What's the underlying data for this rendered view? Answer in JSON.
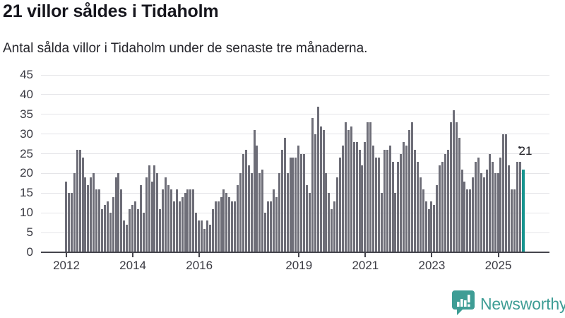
{
  "header": {
    "title": "21 villor såldes i Tidaholm",
    "subtitle": "Antal sålda villor i Tidaholm under de senaste tre månaderna."
  },
  "chart_data": {
    "type": "bar",
    "title": "21 villor såldes i Tidaholm",
    "subtitle": "Antal sålda villor i Tidaholm under de senaste tre månaderna.",
    "x_start": "2012-01",
    "x_interval": "monthly",
    "values": [
      18,
      15,
      15,
      20,
      26,
      26,
      24,
      19,
      17,
      19,
      20,
      16,
      16,
      11,
      12,
      13,
      10,
      14,
      19,
      20,
      16,
      8,
      7,
      11,
      12,
      13,
      11,
      17,
      10,
      19,
      22,
      18,
      22,
      20,
      11,
      16,
      19,
      17,
      16,
      13,
      16,
      13,
      14,
      15,
      16,
      16,
      16,
      10,
      8,
      8,
      6,
      8,
      7,
      11,
      13,
      13,
      14,
      16,
      15,
      14,
      13,
      13,
      17,
      20,
      25,
      26,
      22,
      20,
      31,
      27,
      20,
      21,
      10,
      13,
      13,
      16,
      14,
      20,
      26,
      29,
      20,
      24,
      24,
      24,
      27,
      25,
      25,
      17,
      15,
      34,
      30,
      37,
      32,
      31,
      20,
      15,
      11,
      13,
      19,
      24,
      27,
      33,
      31,
      32,
      28,
      28,
      26,
      22,
      28,
      33,
      33,
      27,
      24,
      24,
      15,
      26,
      26,
      27,
      23,
      15,
      23,
      25,
      28,
      27,
      31,
      33,
      26,
      23,
      19,
      16,
      13,
      11,
      13,
      12,
      17,
      22,
      23,
      25,
      26,
      33,
      36,
      33,
      29,
      21,
      18,
      16,
      16,
      19,
      23,
      24,
      20,
      19,
      21,
      25,
      23,
      20,
      20,
      24,
      30,
      30,
      22,
      16,
      16,
      23,
      23,
      21
    ],
    "highlight_last": true,
    "highlight_value": 21,
    "annotation": {
      "text": "21"
    },
    "ylim": [
      0,
      45
    ],
    "yticks": [
      0,
      5,
      10,
      15,
      20,
      25,
      30,
      35,
      40,
      45
    ],
    "xticks": [
      {
        "label": "2012",
        "year": 2012
      },
      {
        "label": "2014",
        "year": 2014
      },
      {
        "label": "2016",
        "year": 2016
      },
      {
        "label": "2019",
        "year": 2019
      },
      {
        "label": "2021",
        "year": 2021
      },
      {
        "label": "2023",
        "year": 2023
      },
      {
        "label": "2025",
        "year": 2025
      }
    ],
    "grid": true,
    "legend": false,
    "colors": {
      "bar": "#6e6e78",
      "highlight": "#18948f",
      "gridline": "#e5e5e8",
      "axis": "#45454d",
      "text": "#3a3a42"
    }
  },
  "footer": {
    "brand": "Newsworthy",
    "brand_color": "#3e9d95"
  }
}
